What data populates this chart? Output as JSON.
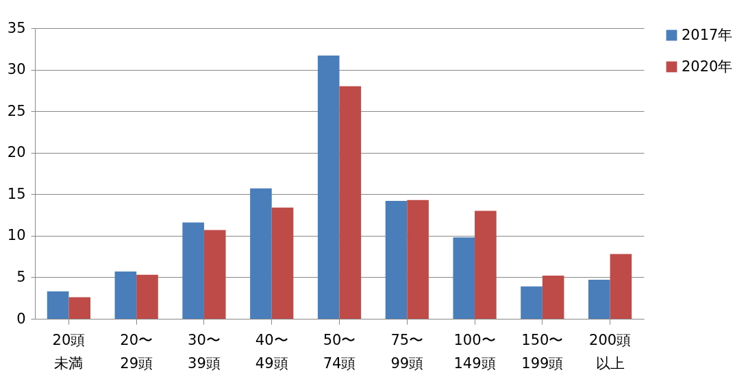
{
  "chart_data": {
    "type": "bar",
    "categories": [
      "20頭未満",
      "20〜29頭",
      "30〜39頭",
      "40〜49頭",
      "50〜74頭",
      "75〜99頭",
      "100〜149頭",
      "150〜199頭",
      "200頭以上"
    ],
    "series": [
      {
        "name": "2017年",
        "color": "#4a7ebb",
        "values": [
          3.3,
          5.7,
          11.6,
          15.7,
          31.7,
          14.2,
          9.8,
          3.9,
          4.7
        ]
      },
      {
        "name": "2020年",
        "color": "#be4b48",
        "values": [
          2.6,
          5.3,
          10.7,
          13.4,
          28.0,
          14.3,
          13.0,
          5.2,
          7.8
        ]
      }
    ],
    "ylim": [
      0,
      35
    ],
    "yticks": [
      0,
      5,
      10,
      15,
      20,
      25,
      30,
      35
    ],
    "grid": "y",
    "legend": "right"
  }
}
